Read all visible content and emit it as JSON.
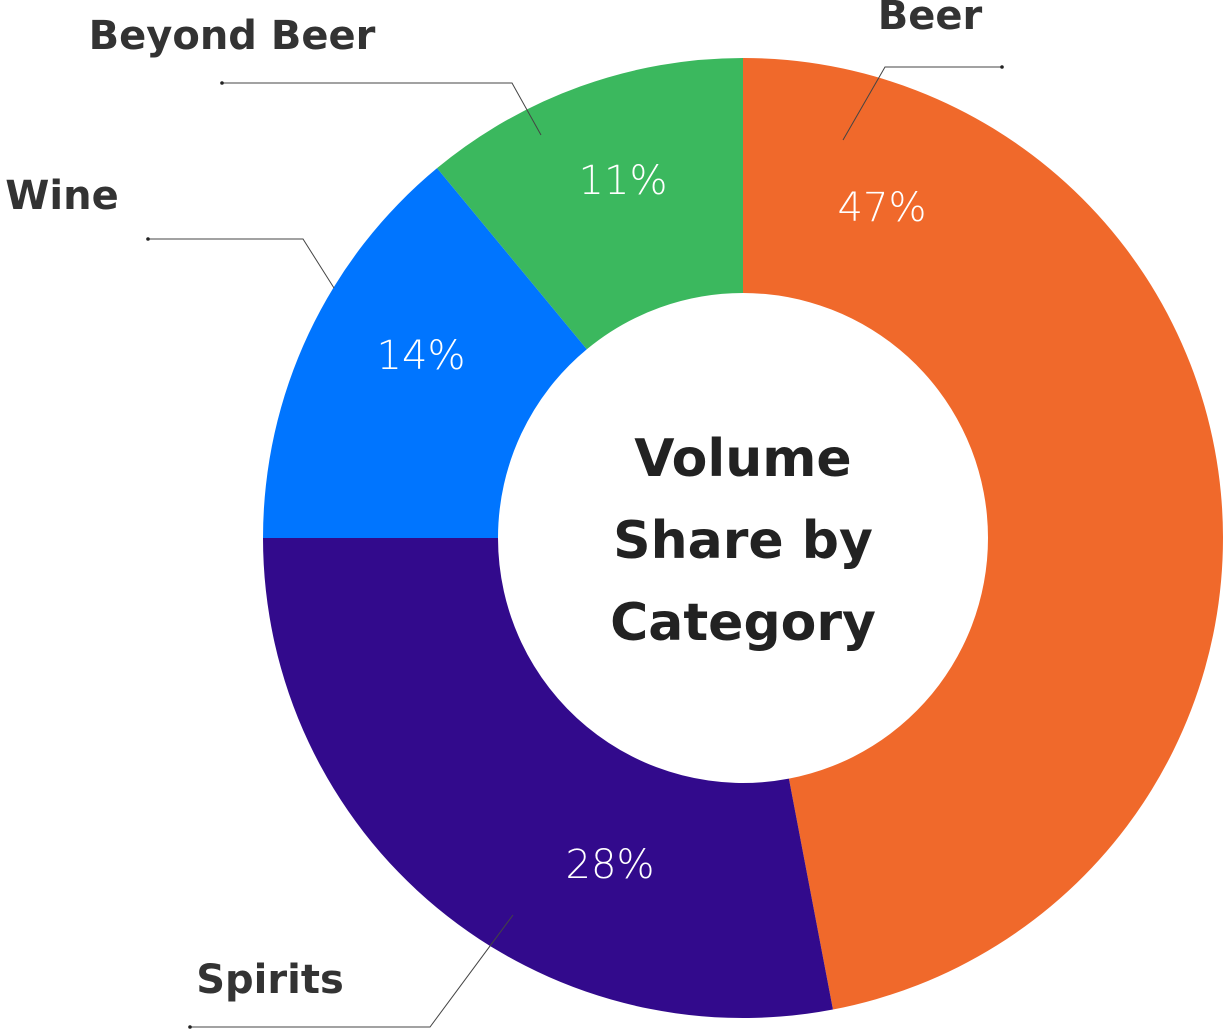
{
  "chart_data": {
    "type": "donut",
    "title": "Volume Share by Category",
    "categories": [
      "Beer",
      "Spirits",
      "Wine",
      "Beyond Beer"
    ],
    "values": [
      47,
      28,
      14,
      11
    ],
    "value_labels": [
      "47%",
      "28%",
      "14%",
      "11%"
    ],
    "colors": [
      "#f0692b",
      "#320a8c",
      "#0075ff",
      "#3bb85e"
    ]
  }
}
